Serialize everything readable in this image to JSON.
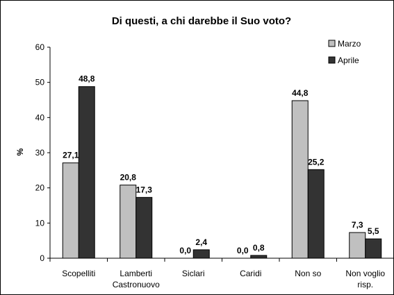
{
  "chart_data": {
    "type": "bar",
    "title": "Di questi, a chi darebbe il Suo voto?",
    "ylabel": "%",
    "xlabel": "",
    "ylim": [
      0,
      60
    ],
    "yticks": [
      0,
      10,
      20,
      30,
      40,
      50,
      60
    ],
    "grid": false,
    "legend_position": "top-right",
    "categories": [
      [
        "Scopelliti"
      ],
      [
        "Lamberti",
        "Castronuovo"
      ],
      [
        "Siclari"
      ],
      [
        "Caridi"
      ],
      [
        "Non so"
      ],
      [
        "Non voglio",
        "risp."
      ]
    ],
    "series": [
      {
        "name": "Marzo",
        "color": "#c0c0c0",
        "values": [
          27.1,
          20.8,
          0.0,
          0.0,
          44.8,
          7.3
        ],
        "labels": [
          "27,1",
          "20,8",
          "0,0",
          "0,0",
          "44,8",
          "7,3"
        ]
      },
      {
        "name": "Aprile",
        "color": "#333333",
        "values": [
          48.8,
          17.3,
          2.4,
          0.8,
          25.2,
          5.5
        ],
        "labels": [
          "48,8",
          "17,3",
          "2,4",
          "0,8",
          "25,2",
          "5,5"
        ]
      }
    ]
  }
}
